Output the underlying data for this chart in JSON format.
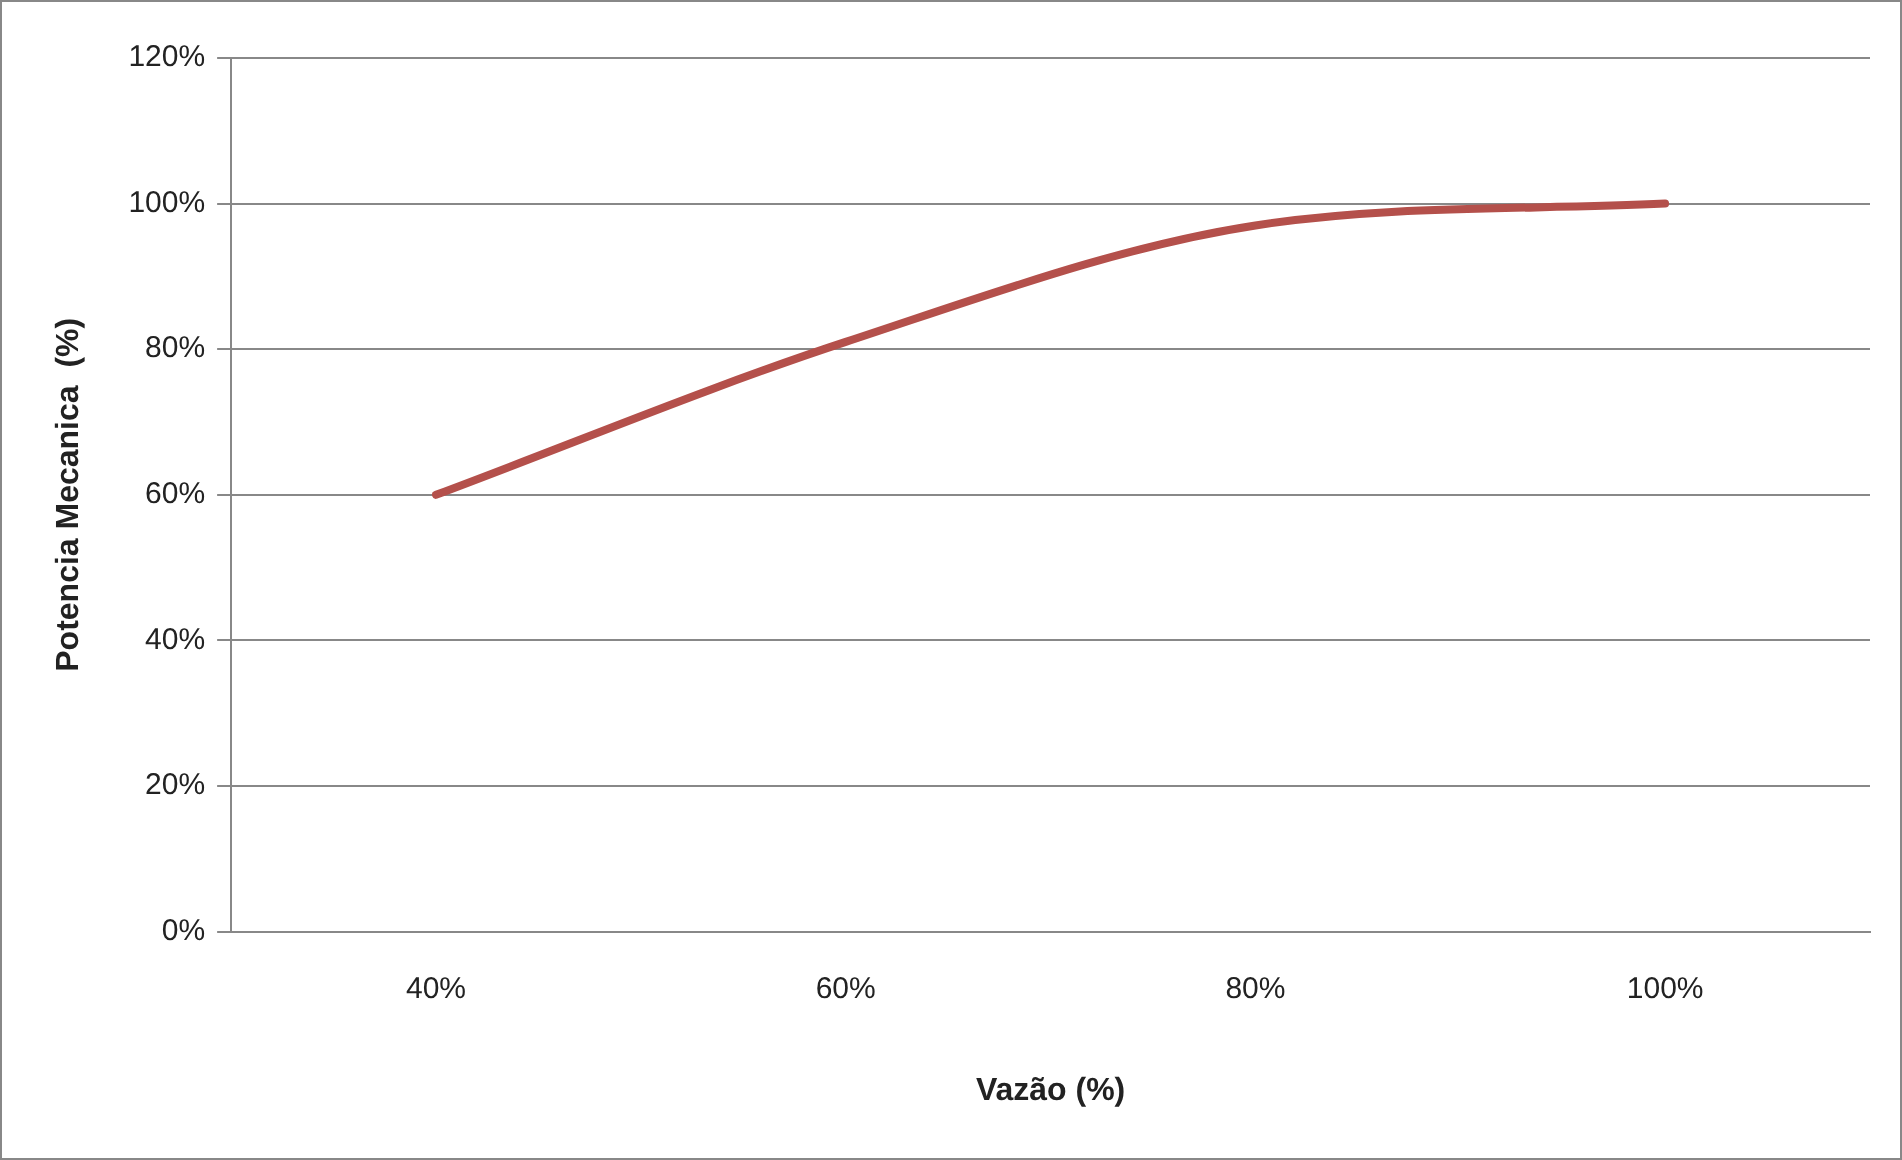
{
  "chart_data": {
    "type": "line",
    "xlabel": "Vazão (%)",
    "ylabel": "Potencia Mecanica  (%)",
    "categories": [
      "40%",
      "60%",
      "80%",
      "100%"
    ],
    "series": [
      {
        "color": "#b4504b",
        "values": [
          60,
          81,
          97,
          100
        ]
      }
    ],
    "ylim": [
      0,
      120
    ],
    "yticks": [
      {
        "value": 0,
        "label": "0%"
      },
      {
        "value": 20,
        "label": "20%"
      },
      {
        "value": 40,
        "label": "40%"
      },
      {
        "value": 60,
        "label": "60%"
      },
      {
        "value": 80,
        "label": "80%"
      },
      {
        "value": 100,
        "label": "100%"
      },
      {
        "value": 120,
        "label": "120%"
      }
    ],
    "grid": "y",
    "legend": false,
    "marker": "none",
    "line_style": "solid"
  }
}
